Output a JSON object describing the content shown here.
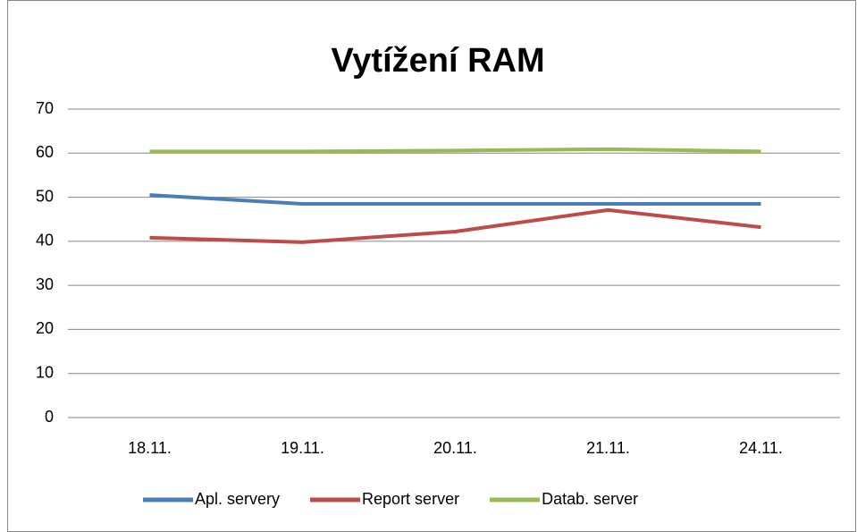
{
  "chart_data": {
    "type": "line",
    "title": "Vytížení RAM",
    "categories": [
      "18.11.",
      "19.11.",
      "20.11.",
      "21.11.",
      "24.11."
    ],
    "series": [
      {
        "name": "Apl. servery",
        "color": "#4a7ebb",
        "values": [
          50.5,
          48.5,
          48.5,
          48.5,
          48.5
        ]
      },
      {
        "name": "Report server",
        "color": "#be4b48",
        "values": [
          40.8,
          39.8,
          42.2,
          47.1,
          43.2
        ]
      },
      {
        "name": "Datab. server",
        "color": "#98b954",
        "values": [
          60.4,
          60.4,
          60.6,
          60.9,
          60.4
        ]
      }
    ],
    "ylim": [
      0,
      70
    ],
    "yticks": [
      0,
      10,
      20,
      30,
      40,
      50,
      60,
      70
    ],
    "grid": true,
    "legend": "bottom"
  }
}
